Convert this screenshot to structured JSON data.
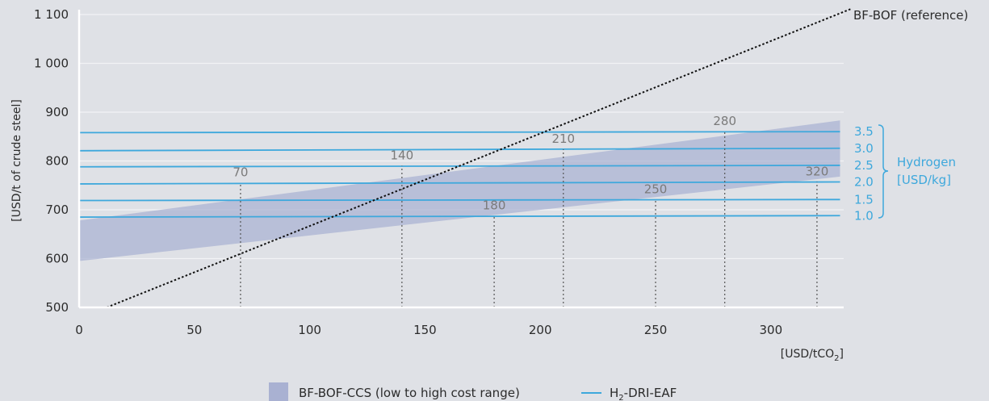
{
  "chart_data": {
    "type": "line",
    "xlim": [
      0,
      330
    ],
    "ylim": [
      500,
      1100
    ],
    "x_ticks": [
      "0",
      "50",
      "100",
      "150",
      "200",
      "250",
      "300"
    ],
    "y_ticks": [
      "500",
      "600",
      "700",
      "800",
      "900",
      "1 000",
      "1 100"
    ],
    "ylabel": "[USD/t of crude steel]",
    "xlabel_main": "[USD/tCO",
    "xlabel_sub": "2",
    "xlabel_end": "]",
    "grid": true,
    "reference_line": {
      "name": "BF-BOF (reference)",
      "points": [
        [
          12,
          500
        ],
        [
          335,
          1112
        ]
      ]
    },
    "ccs_band": {
      "name": "BF-BOF-CCS (low to high cost range)",
      "lower": [
        [
          0,
          595
        ],
        [
          330,
          768
        ]
      ],
      "upper": [
        [
          0,
          678
        ],
        [
          330,
          883
        ]
      ]
    },
    "h2_series": [
      {
        "label": "3.5",
        "values": [
          [
            0,
            858
          ],
          [
            330,
            860
          ]
        ]
      },
      {
        "label": "3.0",
        "values": [
          [
            0,
            821
          ],
          [
            330,
            826
          ]
        ]
      },
      {
        "label": "2.5",
        "values": [
          [
            0,
            788
          ],
          [
            330,
            791
          ]
        ]
      },
      {
        "label": "2.0",
        "values": [
          [
            0,
            753
          ],
          [
            330,
            757
          ]
        ]
      },
      {
        "label": "1.5",
        "values": [
          [
            0,
            719
          ],
          [
            330,
            721
          ]
        ]
      },
      {
        "label": "1.0",
        "values": [
          [
            0,
            685
          ],
          [
            330,
            688
          ]
        ]
      }
    ],
    "hydrogen_group_title": "Hydrogen",
    "hydrogen_group_unit": "[USD/kg]",
    "crossovers": [
      {
        "label": "70",
        "x": 70,
        "y": 755
      },
      {
        "label": "140",
        "x": 140,
        "y": 790
      },
      {
        "label": "180",
        "x": 180,
        "y": 688
      },
      {
        "label": "210",
        "x": 210,
        "y": 824
      },
      {
        "label": "250",
        "x": 250,
        "y": 721
      },
      {
        "label": "280",
        "x": 280,
        "y": 860
      },
      {
        "label": "320",
        "x": 320,
        "y": 757
      }
    ],
    "legend": [
      {
        "type": "band",
        "label": "BF-BOF-CCS (low to high cost range)"
      },
      {
        "type": "line",
        "label_main": "H",
        "label_sub": "2",
        "label_end": "-DRI-EAF"
      }
    ]
  },
  "colors": {
    "background": "#dfe1e6",
    "band": "#a9b1d2",
    "h2_line": "#3ea8dc",
    "reference_line": "#111111",
    "grid": "#f2f3f5",
    "axis": "#ffffff",
    "drop_line": "#555555"
  }
}
